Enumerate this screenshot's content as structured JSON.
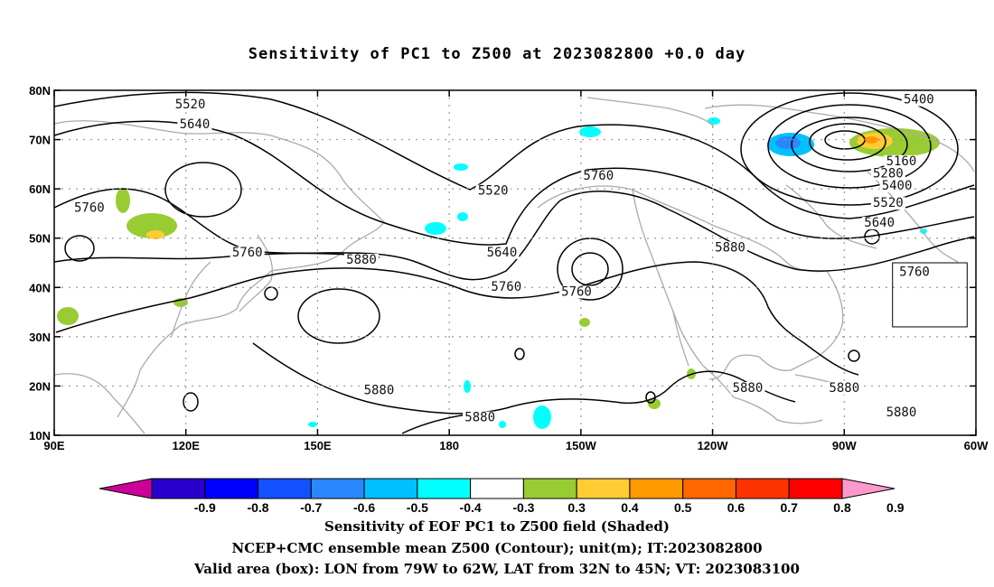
{
  "title": "Sensitivity of PC1 to Z500 at 2023082800 +0.0 day",
  "captions": [
    "Sensitivity of EOF PC1 to Z500 field (Shaded)",
    "NCEP+CMC ensemble mean Z500 (Contour); unit(m); IT:2023082800",
    "Valid area (box): LON from 79W to 62W, LAT from 32N to 45N; VT: 2023083100"
  ],
  "map": {
    "lon_range": [
      90,
      300
    ],
    "lat_range": [
      10,
      80
    ],
    "lon_ticks": [
      {
        "lon": 90,
        "label": "90E"
      },
      {
        "lon": 120,
        "label": "120E"
      },
      {
        "lon": 150,
        "label": "150E"
      },
      {
        "lon": 180,
        "label": "180"
      },
      {
        "lon": 210,
        "label": "150W"
      },
      {
        "lon": 240,
        "label": "120W"
      },
      {
        "lon": 270,
        "label": "90W"
      },
      {
        "lon": 300,
        "label": "60W"
      }
    ],
    "lat_ticks": [
      {
        "lat": 10,
        "label": "10N"
      },
      {
        "lat": 20,
        "label": "20N"
      },
      {
        "lat": 30,
        "label": "30N"
      },
      {
        "lat": 40,
        "label": "40N"
      },
      {
        "lat": 50,
        "label": "50N"
      },
      {
        "lat": 60,
        "label": "60N"
      },
      {
        "lat": 70,
        "label": "70N"
      },
      {
        "lat": 80,
        "label": "80N"
      }
    ],
    "grid": true,
    "valid_box": {
      "lon_min": 281,
      "lon_max": 298,
      "lat_min": 32,
      "lat_max": 45
    },
    "contour_labels": [
      {
        "text": "5520",
        "lon": 121,
        "lat": 76.5
      },
      {
        "text": "5640",
        "lon": 122,
        "lat": 72.5
      },
      {
        "text": "5400",
        "lon": 287,
        "lat": 77.5
      },
      {
        "text": "5160",
        "lon": 283,
        "lat": 65
      },
      {
        "text": "5280",
        "lon": 280,
        "lat": 62.5
      },
      {
        "text": "5400",
        "lon": 282,
        "lat": 60
      },
      {
        "text": "5520",
        "lon": 280,
        "lat": 56.5
      },
      {
        "text": "5640",
        "lon": 278,
        "lat": 52.5
      },
      {
        "text": "5760",
        "lon": 214,
        "lat": 62
      },
      {
        "text": "5520",
        "lon": 190,
        "lat": 59
      },
      {
        "text": "5640",
        "lon": 192,
        "lat": 46.5
      },
      {
        "text": "5760",
        "lon": 193,
        "lat": 39.5
      },
      {
        "text": "5760",
        "lon": 209,
        "lat": 38.5
      },
      {
        "text": "5880",
        "lon": 244,
        "lat": 47.5
      },
      {
        "text": "5760",
        "lon": 286,
        "lat": 42.5
      },
      {
        "text": "5760",
        "lon": 98,
        "lat": 55.5
      },
      {
        "text": "5760",
        "lon": 134,
        "lat": 46.5
      },
      {
        "text": "5880",
        "lon": 160,
        "lat": 45
      },
      {
        "text": "5880",
        "lon": 164,
        "lat": 18.5
      },
      {
        "text": "5880",
        "lon": 187,
        "lat": 13
      },
      {
        "text": "5880",
        "lon": 248,
        "lat": 19
      },
      {
        "text": "5880",
        "lon": 270,
        "lat": 19
      },
      {
        "text": "5880",
        "lon": 283,
        "lat": 14
      }
    ]
  },
  "colorbar": {
    "colors": [
      "#cc0099",
      "#2a00cc",
      "#0000ff",
      "#1450ff",
      "#2a88ff",
      "#00c0ff",
      "#00ffff",
      "#ffffff",
      "#99cc33",
      "#ffcc33",
      "#ff9900",
      "#ff6600",
      "#ff3300",
      "#ff0000",
      "#ff99cc"
    ],
    "labels": [
      "-0.9",
      "-0.8",
      "-0.7",
      "-0.6",
      "-0.5",
      "-0.4",
      "-0.3",
      "0.3",
      "0.4",
      "0.5",
      "0.6",
      "0.7",
      "0.8",
      "0.9"
    ]
  }
}
